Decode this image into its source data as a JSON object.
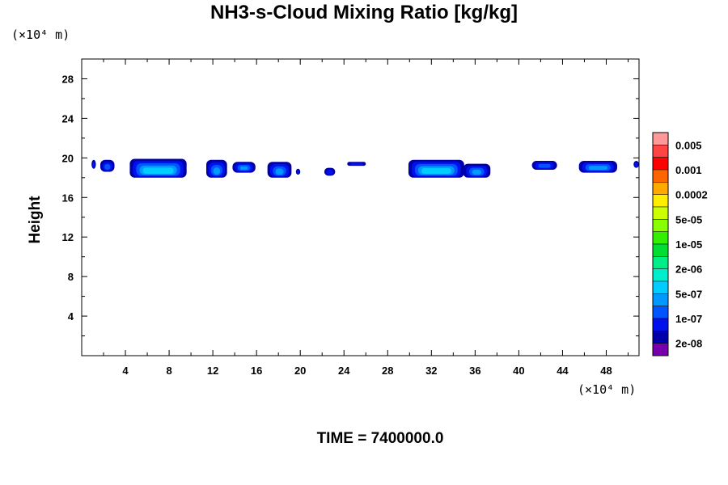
{
  "chart_data": {
    "type": "heatmap",
    "title": "NH3-s-Cloud Mixing Ratio [kg/kg]",
    "ylabel": "Height",
    "xlabel": "",
    "x_unit": "(×10⁴ m)",
    "y_unit": "(×10⁴ m)",
    "xlim": [
      0,
      51
    ],
    "ylim": [
      0,
      30
    ],
    "x_ticks": [
      4,
      8,
      12,
      16,
      20,
      24,
      28,
      32,
      36,
      40,
      44,
      48
    ],
    "y_ticks": [
      4,
      8,
      12,
      16,
      20,
      24,
      28
    ],
    "time_label": "TIME = 7400000.0",
    "colorbar": {
      "labels": [
        "0.005",
        "0.001",
        "0.0002",
        "5e-05",
        "1e-05",
        "2e-06",
        "5e-07",
        "1e-07",
        "2e-08"
      ],
      "colors": [
        "#ff9999",
        "#ff4444",
        "#ff0000",
        "#ff6600",
        "#ffaa00",
        "#ffee00",
        "#ccff00",
        "#88ff00",
        "#33ee00",
        "#00dd33",
        "#00ee88",
        "#00eecc",
        "#00ccff",
        "#0099ff",
        "#0055ff",
        "#0011ee",
        "#0000aa",
        "#7700aa"
      ]
    },
    "cloud_blobs": [
      {
        "x": [
          0.9,
          1.3
        ],
        "y": [
          18.9,
          19.8
        ],
        "level": 0
      },
      {
        "x": [
          1.7,
          3.0
        ],
        "y": [
          18.6,
          19.8
        ],
        "level": 1
      },
      {
        "x": [
          4.4,
          9.6
        ],
        "y": [
          18.0,
          19.9
        ],
        "level": 3
      },
      {
        "x": [
          11.4,
          13.3
        ],
        "y": [
          18.0,
          19.8
        ],
        "level": 2
      },
      {
        "x": [
          13.8,
          15.9
        ],
        "y": [
          18.5,
          19.6
        ],
        "level": 2
      },
      {
        "x": [
          17.0,
          19.2
        ],
        "y": [
          18.0,
          19.6
        ],
        "level": 2
      },
      {
        "x": [
          19.6,
          20.0
        ],
        "y": [
          18.3,
          18.9
        ],
        "level": 0
      },
      {
        "x": [
          22.2,
          23.2
        ],
        "y": [
          18.2,
          19.0
        ],
        "level": 0
      },
      {
        "x": [
          24.3,
          26.0
        ],
        "y": [
          19.2,
          19.6
        ],
        "level": 0
      },
      {
        "x": [
          29.9,
          35.0
        ],
        "y": [
          18.0,
          19.8
        ],
        "level": 3
      },
      {
        "x": [
          34.9,
          37.4
        ],
        "y": [
          18.0,
          19.4
        ],
        "level": 2
      },
      {
        "x": [
          41.2,
          43.5
        ],
        "y": [
          18.8,
          19.7
        ],
        "level": 1
      },
      {
        "x": [
          45.5,
          49.0
        ],
        "y": [
          18.5,
          19.7
        ],
        "level": 2
      },
      {
        "x": [
          50.5,
          51.0
        ],
        "y": [
          19.0,
          19.7
        ],
        "level": 0
      }
    ]
  }
}
